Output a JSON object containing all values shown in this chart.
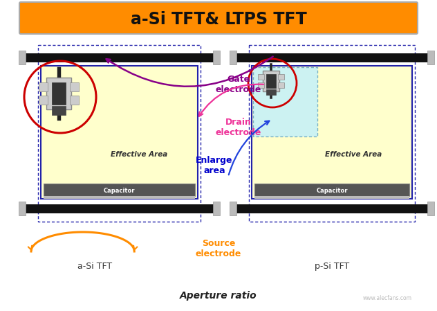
{
  "title": "a-Si TFT& LTPS TFT",
  "title_bg_color": "#FF8C00",
  "title_text_color": "#111111",
  "bg_color": "#FFFFFF",
  "subtitle": "Aperture ratio",
  "watermark": "www.alecfans.com",
  "label_asi": "a-Si TFT",
  "label_psi": "p-Si TFT",
  "label_gate": "Gate\nelectrode",
  "label_drain": "Drain\nelectrode",
  "label_source": "Source\nelectrode",
  "label_enlarge": "Enlarge\narea",
  "label_effective": "Effective Area",
  "label_capacitor": "Capacitor"
}
